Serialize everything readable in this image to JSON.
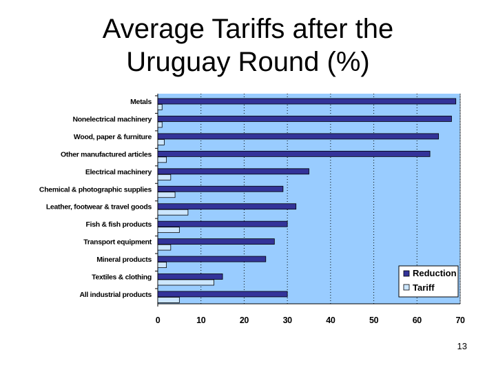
{
  "slide": {
    "title_line1": "Average Tariffs after the",
    "title_line2": "Uruguay Round (%)",
    "page_number": "13"
  },
  "chart_data": {
    "type": "bar",
    "orientation": "horizontal",
    "categories": [
      "Metals",
      "Nonelectrical machinery",
      "Wood, paper & furniture",
      "Other manufactured articles",
      "Electrical machinery",
      "Chemical & photographic supplies",
      "Leather, footwear & travel goods",
      "Fish & fish products",
      "Transport equipment",
      "Mineral products",
      "Textiles & clothing",
      "All industrial products"
    ],
    "series": [
      {
        "name": "Reduction",
        "values": [
          69,
          68,
          65,
          63,
          35,
          29,
          32,
          30,
          27,
          25,
          15,
          30
        ]
      },
      {
        "name": "Tariff",
        "values": [
          1,
          1,
          1.5,
          2,
          3,
          4,
          7,
          5,
          3,
          2,
          13,
          5
        ]
      }
    ],
    "xlim": [
      0,
      70
    ],
    "xticks": [
      "0",
      "10",
      "20",
      "30",
      "40",
      "50",
      "60",
      "70"
    ],
    "grid": "vertical dotted",
    "legend_position": "bottom-right",
    "colors": {
      "plot_background": "#99ccff",
      "reduction": "#333399",
      "tariff": "#cce6ff",
      "outline": "#000000",
      "gridline": "#000000"
    }
  }
}
